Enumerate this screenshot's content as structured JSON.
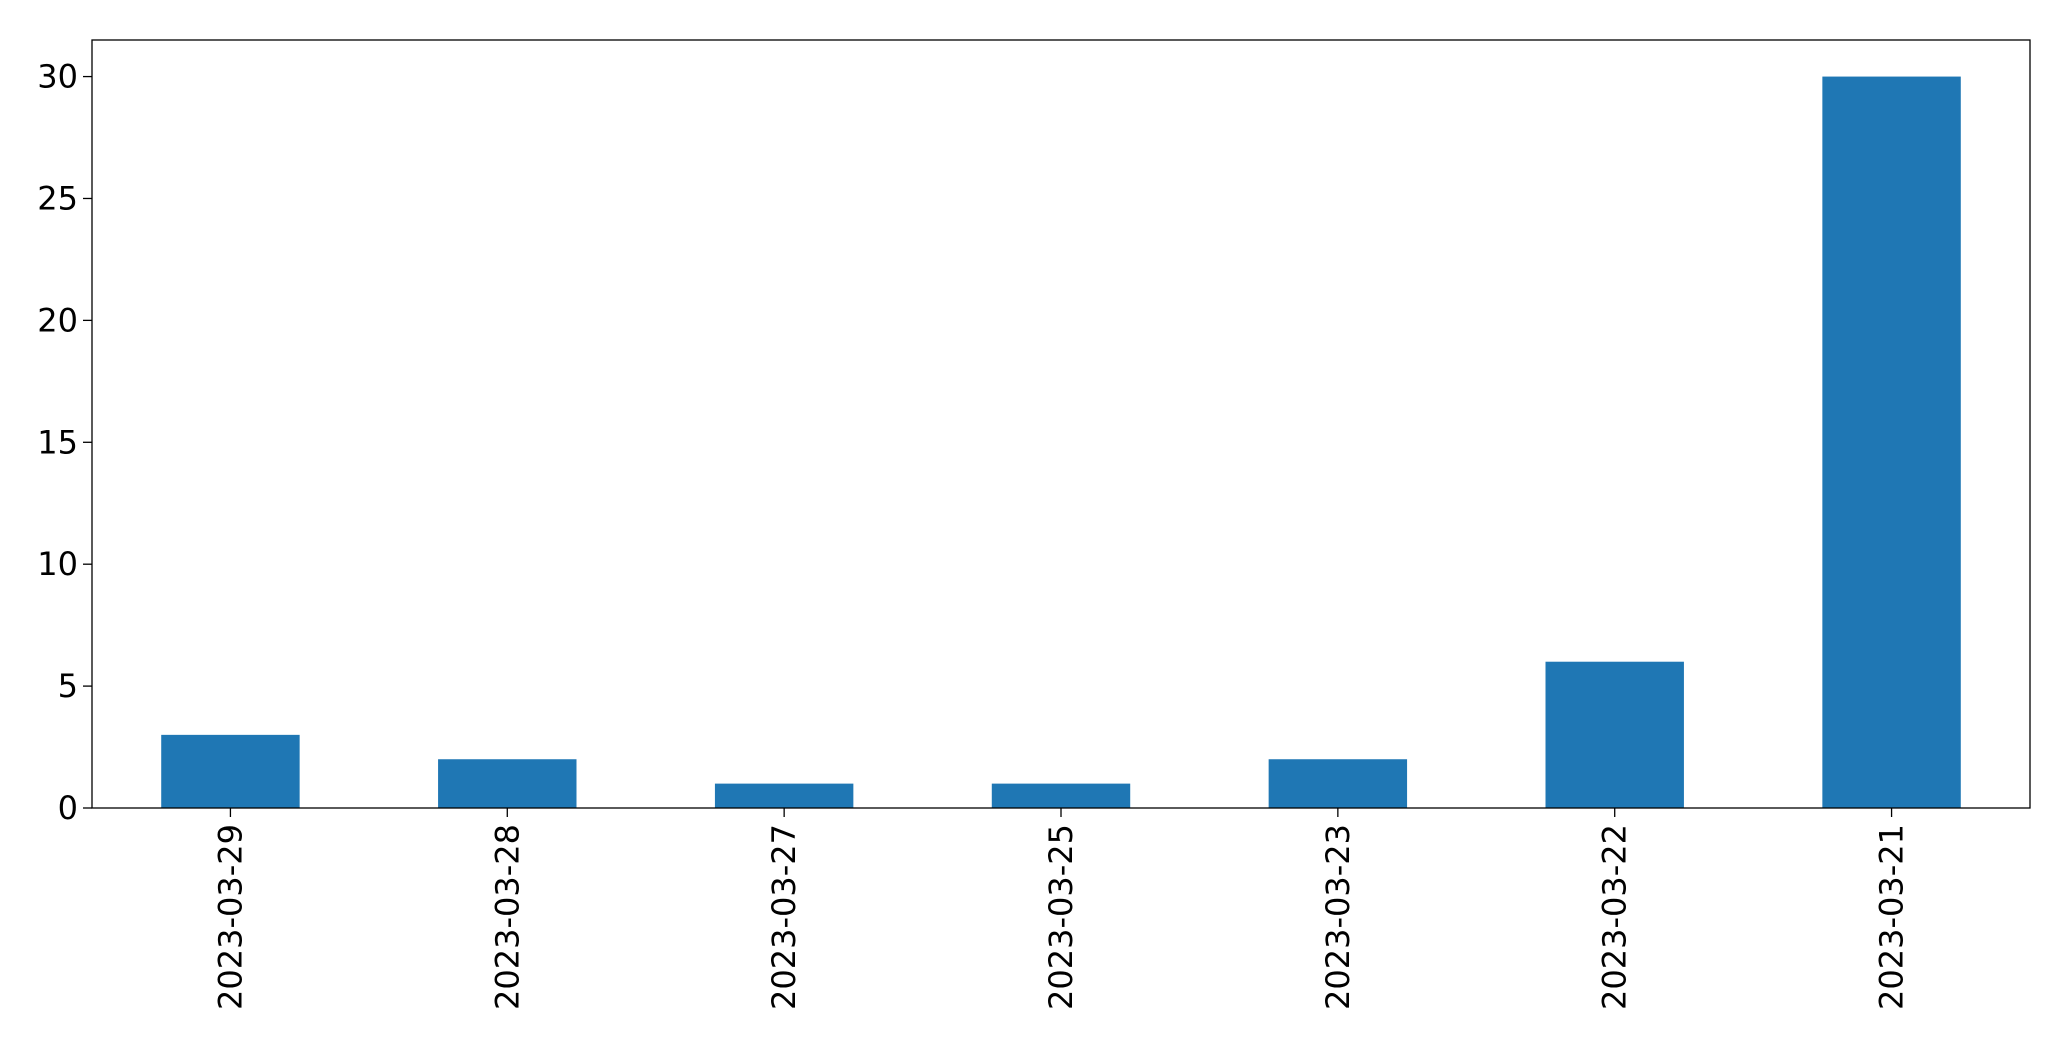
{
  "chart_data": {
    "type": "bar",
    "categories": [
      "2023-03-29",
      "2023-03-28",
      "2023-03-27",
      "2023-03-25",
      "2023-03-23",
      "2023-03-22",
      "2023-03-21"
    ],
    "values": [
      3,
      2,
      1,
      1,
      2,
      6,
      30
    ],
    "color": "#1f77b4",
    "ylim": [
      0,
      31.5
    ],
    "yticks": [
      0,
      5,
      10,
      15,
      20,
      25,
      30
    ],
    "grid": false
  }
}
